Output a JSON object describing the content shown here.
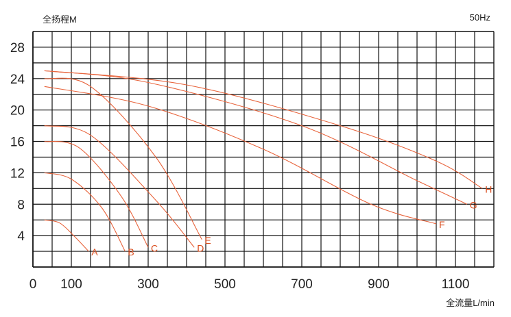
{
  "chart_data": {
    "type": "line",
    "ylabel": "全扬程M",
    "xlabel": "全流量L/min",
    "frequency_label": "50Hz",
    "xlim": [
      0,
      1200
    ],
    "ylim": [
      0,
      30
    ],
    "x_ticks": [
      0,
      100,
      300,
      500,
      700,
      900,
      1100
    ],
    "y_ticks": [
      4,
      8,
      12,
      16,
      20,
      24,
      28
    ],
    "grid": true,
    "line_color": "#e8643c",
    "label_color": "#d94a1a",
    "series": [
      {
        "name": "A",
        "points": [
          [
            30,
            6
          ],
          [
            70,
            5.6
          ],
          [
            110,
            3.8
          ],
          [
            145,
            2
          ]
        ]
      },
      {
        "name": "B",
        "points": [
          [
            30,
            12
          ],
          [
            100,
            11.2
          ],
          [
            180,
            7.5
          ],
          [
            240,
            2
          ]
        ]
      },
      {
        "name": "C",
        "points": [
          [
            30,
            16
          ],
          [
            120,
            15.2
          ],
          [
            230,
            9
          ],
          [
            300,
            2.5
          ]
        ]
      },
      {
        "name": "D",
        "points": [
          [
            30,
            18
          ],
          [
            150,
            16.8
          ],
          [
            320,
            8.5
          ],
          [
            420,
            2.5
          ]
        ]
      },
      {
        "name": "E",
        "points": [
          [
            30,
            24
          ],
          [
            150,
            23
          ],
          [
            320,
            14
          ],
          [
            440,
            3.5
          ]
        ]
      },
      {
        "name": "F",
        "points": [
          [
            30,
            23
          ],
          [
            300,
            20.5
          ],
          [
            600,
            15
          ],
          [
            880,
            8
          ],
          [
            1050,
            5.5
          ]
        ]
      },
      {
        "name": "G",
        "points": [
          [
            30,
            25
          ],
          [
            300,
            23.5
          ],
          [
            700,
            18
          ],
          [
            1000,
            11
          ],
          [
            1130,
            8
          ]
        ]
      },
      {
        "name": "H",
        "points": [
          [
            30,
            25
          ],
          [
            400,
            23.2
          ],
          [
            800,
            18
          ],
          [
            1050,
            13.5
          ],
          [
            1170,
            10
          ]
        ]
      }
    ]
  }
}
